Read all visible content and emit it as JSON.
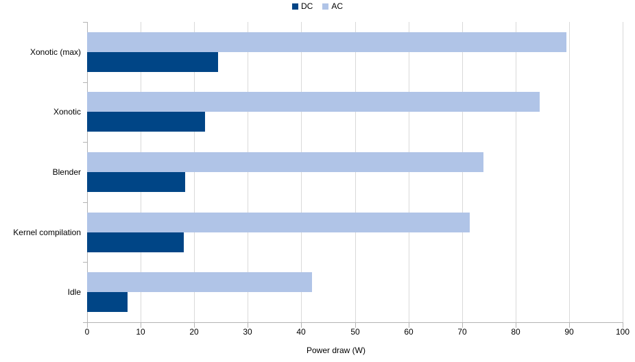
{
  "chart_data": {
    "type": "bar",
    "orientation": "horizontal",
    "title": "",
    "xlabel": "Power draw (W)",
    "ylabel": "",
    "categories": [
      "Xonotic (max)",
      "Xonotic",
      "Blender",
      "Kernel compilation",
      "Idle"
    ],
    "series": [
      {
        "name": "DC",
        "color": "#004586",
        "values": [
          24.5,
          22,
          18.3,
          18,
          7.5
        ]
      },
      {
        "name": "AC",
        "color": "#b0c4e7",
        "values": [
          89.5,
          84.5,
          74,
          71.5,
          42
        ]
      }
    ],
    "xlim": [
      0,
      100
    ],
    "xticks": [
      0,
      10,
      20,
      30,
      40,
      50,
      60,
      70,
      80,
      90,
      100
    ],
    "grid": "vertical-major",
    "legend_position": "top-center",
    "series_stack_order_note": "within each category band the AC bar is drawn above the DC bar"
  },
  "colors": {
    "background": "#ffffff",
    "gridline": "#d9d9d9",
    "axis": "#b3b3b3",
    "text": "#000000"
  }
}
